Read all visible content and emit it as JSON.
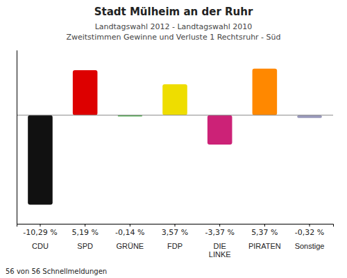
{
  "chart_data": {
    "type": "bar",
    "title": "Stadt Mülheim an der Ruhr",
    "subtitle": [
      "Landtagswahl 2012 - Landtagswahl 2010",
      "Zweitstimmen Gewinne und Verluste 1 Rechtsruhr - Süd"
    ],
    "annotations": [
      "56 von 56 Schnellmeldungen"
    ],
    "categories": [
      "CDU",
      "SPD",
      "GRÜNE",
      "FDP",
      "DIE\nLINKE",
      "PIRATEN",
      "Sonstige"
    ],
    "values": [
      -10.29,
      5.19,
      -0.14,
      3.57,
      -3.37,
      5.37,
      -0.32
    ],
    "value_labels": [
      "-10,29 %",
      "5,19 %",
      "-0,14 %",
      "3,57 %",
      "-3,37 %",
      "5,37 %",
      "-0,32 %"
    ],
    "colors": [
      "#111111",
      "#dd0000",
      "#4aaa4a",
      "#eedd00",
      "#cc2277",
      "#ff8800",
      "#9999bb"
    ],
    "ylim": [
      -12.5,
      7.5
    ],
    "data_labels": true,
    "tick_labels": false,
    "grid": false
  }
}
